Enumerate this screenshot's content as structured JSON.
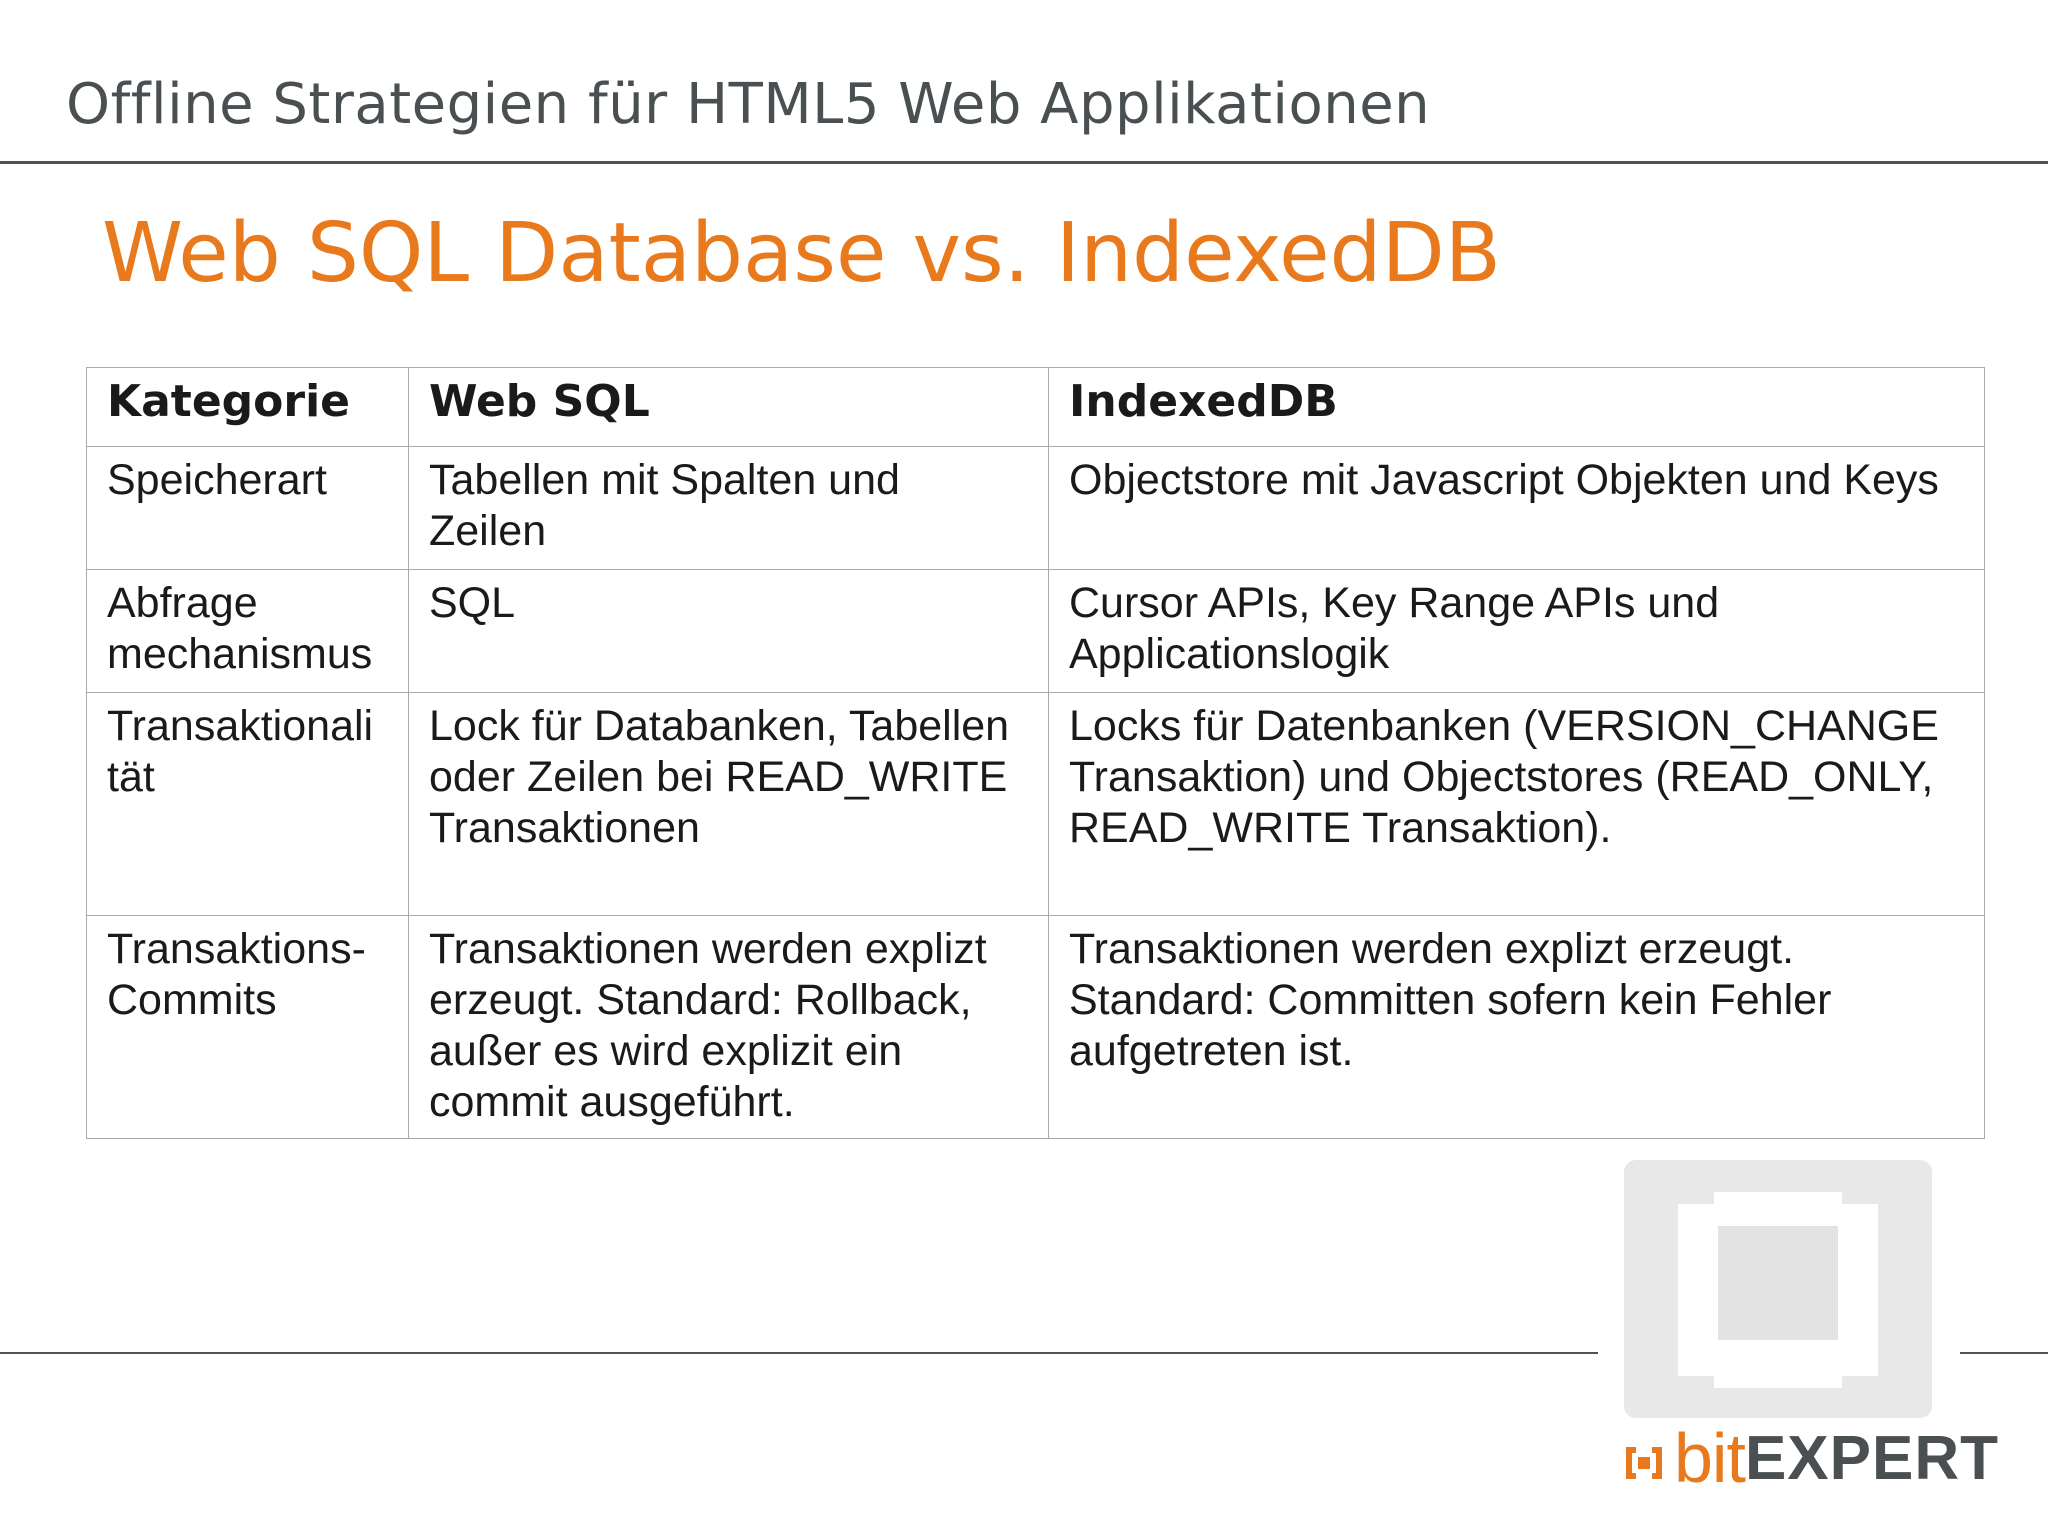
{
  "header": {
    "title": "Offline Strategien für HTML5 Web Applikationen"
  },
  "slide": {
    "title": "Web SQL Database vs. IndexedDB"
  },
  "table": {
    "headers": [
      "Kategorie",
      "Web SQL",
      "IndexedDB"
    ],
    "rows": [
      {
        "category": "Speicherart",
        "websql": "Tabellen mit Spalten und Zeilen",
        "indexeddb": "Objectstore mit Javascript Objekten und Keys"
      },
      {
        "category": "Abfrage mechanismus",
        "websql": "SQL",
        "indexeddb": "Cursor APIs, Key Range APIs und Applicationslogik"
      },
      {
        "category": "Transaktionali tät",
        "websql": "Lock für Databanken, Tabellen oder Zeilen bei READ_WRITE Transaktionen",
        "indexeddb": "Locks für Datenbanken (VERSION_CHANGE Transaktion) und Objectstores (READ_ONLY, READ_WRITE Transaktion)."
      },
      {
        "category": "Transaktions-Commits",
        "websql": "Transaktionen werden explizt erzeugt. Standard: Rollback, außer es wird explizit ein commit ausgeführt.",
        "indexeddb": "Transaktionen werden explizt erzeugt. Standard: Committen sofern kein Fehler aufgetreten ist."
      }
    ]
  },
  "logo": {
    "bit": "bit",
    "expert": "EXPERT",
    "icon": "bracket-square-icon",
    "colors": {
      "orange": "#e8791c",
      "gray": "#4a5052",
      "watermark": "#e6e6e6"
    }
  }
}
